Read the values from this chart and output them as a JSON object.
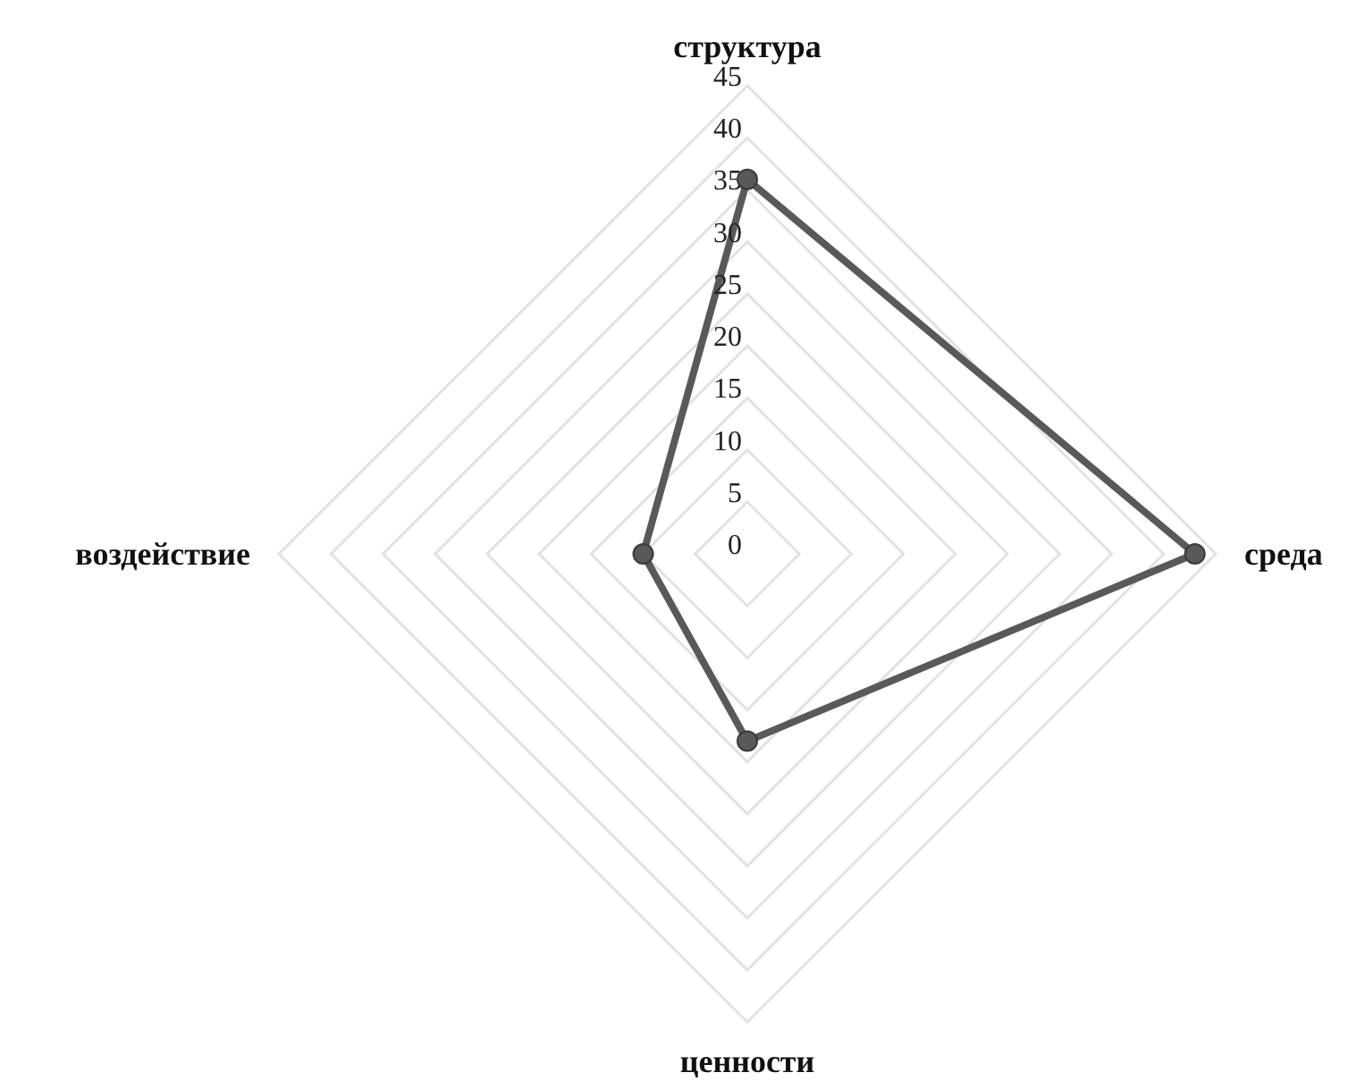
{
  "chart_data": {
    "type": "radar",
    "categories": [
      "структура",
      "среда",
      "ценности",
      "воздействие"
    ],
    "series": [
      {
        "color": "#595959",
        "values": [
          36,
          43,
          18,
          10
        ]
      }
    ],
    "ylim": [
      0,
      45
    ],
    "yticks": [
      0,
      5,
      10,
      15,
      20,
      25,
      30,
      35,
      40,
      45
    ],
    "grid": true,
    "marker": "circle",
    "line_style": "solid"
  }
}
